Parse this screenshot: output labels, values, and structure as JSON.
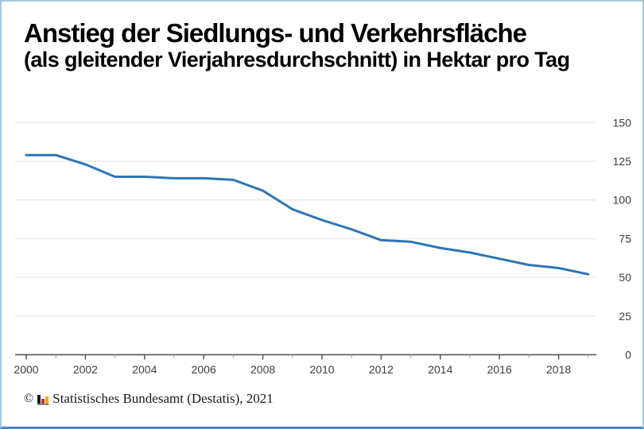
{
  "header": {
    "title_line1": "Anstieg der Siedlungs- und Verkehrsfläche",
    "title_line2": "(als gleitender Vierjahresdurchschnitt) in Hektar pro Tag"
  },
  "footer": {
    "copyright": "©",
    "source": "Statistisches Bundesamt (Destatis), 2021",
    "logo_icon": "destatis-bar-chart-logo"
  },
  "colors": {
    "line": "#2e75b6",
    "grid": "#e9e9e9",
    "axis": "#4d4d4d",
    "tick_minor": "#9a9a9a",
    "label": "#3d3d3d",
    "border_light": "#a9c7e0",
    "border_bottom": "#4e86bb",
    "logo_black": "#1a1a1a",
    "logo_red": "#d42b1e",
    "logo_gold": "#f5a800",
    "logo_base": "#8a8a8a"
  },
  "chart_data": {
    "type": "line",
    "title": "Anstieg der Siedlungs- und Verkehrsfläche",
    "subtitle": "(als gleitender Vierjahresdurchschnitt) in Hektar pro Tag",
    "ylabel": "Hektar pro Tag",
    "x": [
      2000,
      2001,
      2002,
      2003,
      2004,
      2005,
      2006,
      2007,
      2008,
      2009,
      2010,
      2011,
      2012,
      2013,
      2014,
      2015,
      2016,
      2017,
      2018,
      2019
    ],
    "values": [
      129,
      129,
      123,
      115,
      115,
      114,
      114,
      113,
      106,
      94,
      87,
      81,
      74,
      73,
      69,
      66,
      62,
      58,
      56,
      52
    ],
    "ylim": [
      0,
      150
    ],
    "yticks": [
      0,
      25,
      50,
      75,
      100,
      125,
      150
    ],
    "xtick_labels": [
      2000,
      2002,
      2004,
      2006,
      2008,
      2010,
      2012,
      2014,
      2016,
      2018
    ],
    "grid": true,
    "y_axis_side": "right",
    "legend": "none"
  }
}
